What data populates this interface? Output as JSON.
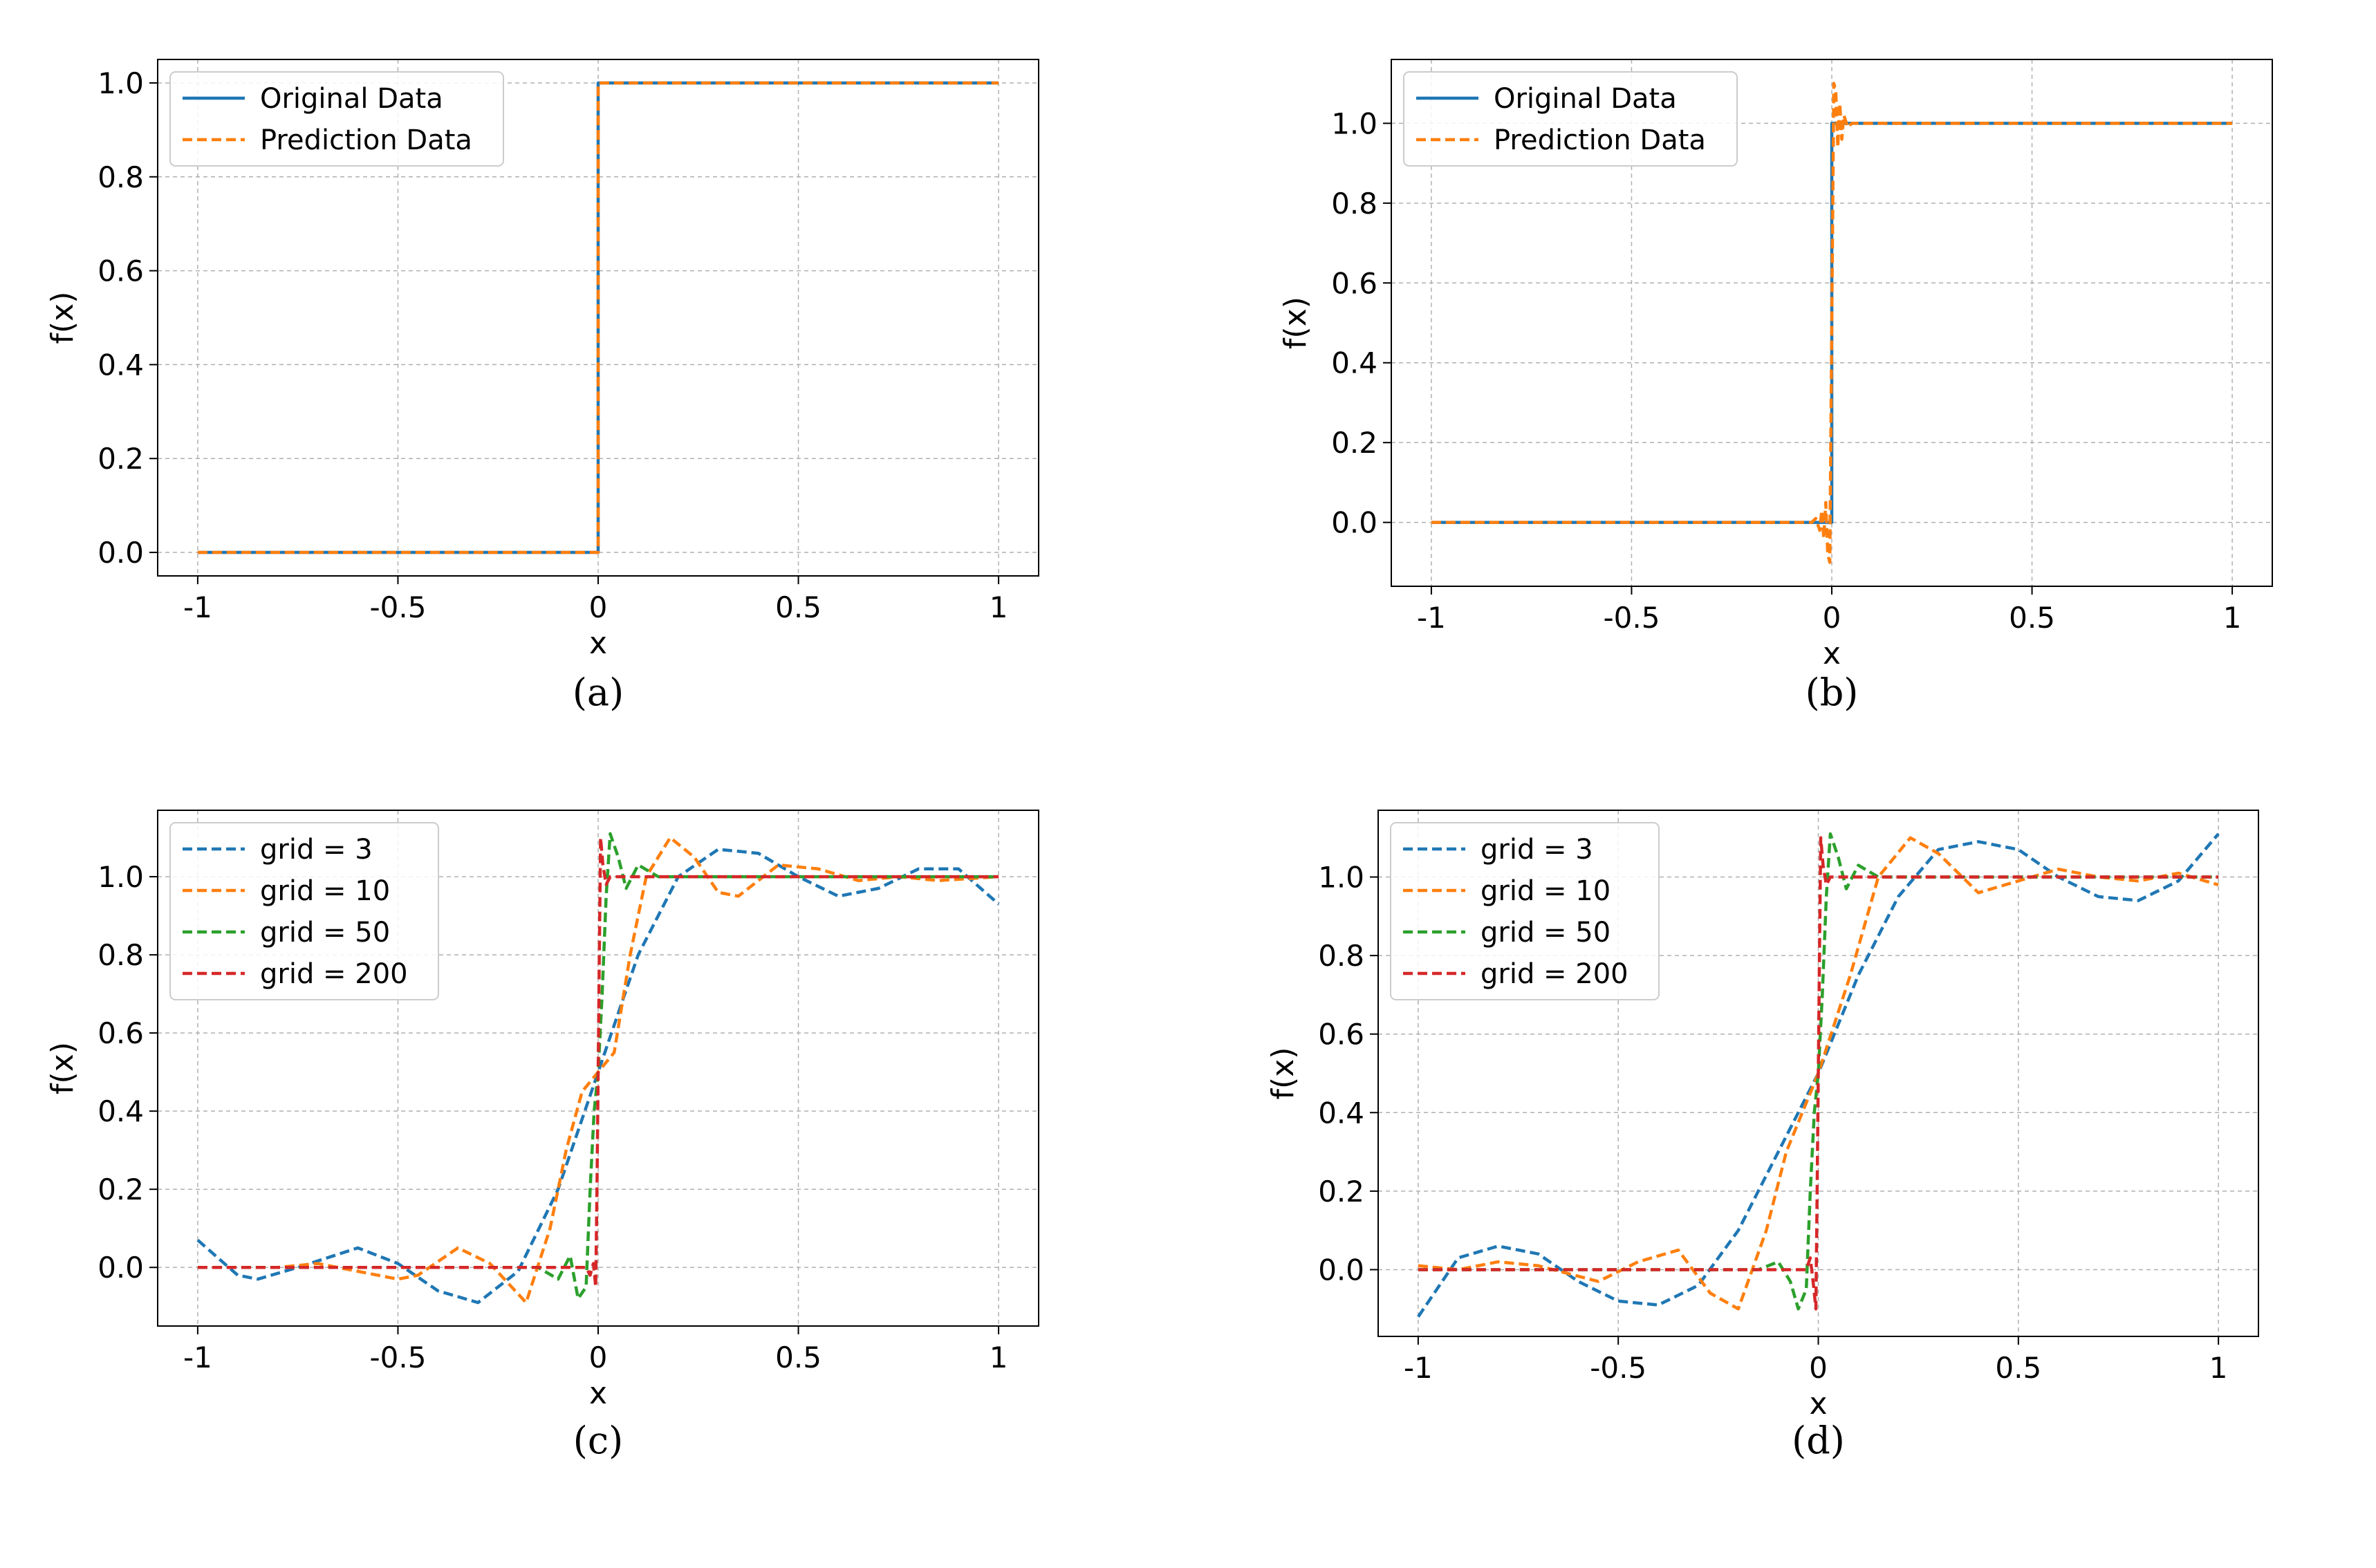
{
  "colors": {
    "original": "#1f77b4",
    "prediction": "#ff7f0e",
    "grid_3": "#1f77b4",
    "grid_10": "#ff7f0e",
    "grid_50": "#2ca02c",
    "grid_200": "#d62728"
  },
  "chart_data": [
    {
      "type": "line",
      "panel": "a",
      "caption": "(a)",
      "xlabel": "x",
      "ylabel": "f(x)",
      "xlim": [
        -1.1,
        1.1
      ],
      "ylim": [
        -0.05,
        1.05
      ],
      "xticks": [
        -1,
        -0.5,
        0,
        0.5,
        1
      ],
      "xtick_labels": [
        "-1",
        "-0.5",
        "0",
        "0.5",
        "1"
      ],
      "yticks": [
        0.0,
        0.2,
        0.4,
        0.6,
        0.8,
        1.0
      ],
      "ytick_labels": [
        "0.0",
        "0.2",
        "0.4",
        "0.6",
        "0.8",
        "1.0"
      ],
      "grid": true,
      "legend_position": "upper-left",
      "series": [
        {
          "name": "Original Data",
          "color_key": "original",
          "style": "solid",
          "x": [
            -1,
            0,
            0,
            1
          ],
          "y": [
            0,
            0,
            1,
            1
          ]
        },
        {
          "name": "Prediction Data",
          "color_key": "prediction",
          "style": "dashed",
          "x": [
            -1,
            0,
            0,
            1
          ],
          "y": [
            0,
            0,
            1,
            1
          ]
        }
      ]
    },
    {
      "type": "line",
      "panel": "b",
      "caption": "(b)",
      "xlabel": "x",
      "ylabel": "f(x)",
      "xlim": [
        -1.1,
        1.1
      ],
      "ylim": [
        -0.16,
        1.16
      ],
      "xticks": [
        -1,
        -0.5,
        0,
        0.5,
        1
      ],
      "xtick_labels": [
        "-1",
        "-0.5",
        "0",
        "0.5",
        "1"
      ],
      "yticks": [
        0.0,
        0.2,
        0.4,
        0.6,
        0.8,
        1.0
      ],
      "ytick_labels": [
        "0.0",
        "0.2",
        "0.4",
        "0.6",
        "0.8",
        "1.0"
      ],
      "grid": true,
      "legend_position": "upper-left",
      "series": [
        {
          "name": "Original Data",
          "color_key": "original",
          "style": "solid",
          "x": [
            -1,
            0,
            0,
            1
          ],
          "y": [
            0,
            0,
            1,
            1
          ]
        },
        {
          "name": "Prediction Data",
          "color_key": "prediction",
          "style": "dashed",
          "x": [
            -1,
            -0.05,
            -0.04,
            -0.03,
            -0.025,
            -0.02,
            -0.015,
            -0.01,
            -0.005,
            0,
            0.005,
            0.01,
            0.015,
            0.02,
            0.025,
            0.03,
            0.04,
            0.05,
            1
          ],
          "y": [
            0,
            0,
            0.01,
            -0.02,
            0.03,
            -0.04,
            0.05,
            -0.08,
            -0.1,
            0.5,
            1.1,
            1.08,
            0.94,
            1.05,
            0.96,
            1.02,
            0.99,
            1.0,
            1.0
          ]
        }
      ]
    },
    {
      "type": "line",
      "panel": "c",
      "caption": "(c)",
      "xlabel": "x",
      "ylabel": "f(x)",
      "xlim": [
        -1.1,
        1.1
      ],
      "ylim": [
        -0.15,
        1.17
      ],
      "xticks": [
        -1,
        -0.5,
        0,
        0.5,
        1
      ],
      "xtick_labels": [
        "-1",
        "-0.5",
        "0",
        "0.5",
        "1"
      ],
      "yticks": [
        0.0,
        0.2,
        0.4,
        0.6,
        0.8,
        1.0
      ],
      "ytick_labels": [
        "0.0",
        "0.2",
        "0.4",
        "0.6",
        "0.8",
        "1.0"
      ],
      "grid": true,
      "legend_position": "upper-left",
      "series": [
        {
          "name": "grid = 3",
          "color_key": "grid_3",
          "style": "dashed",
          "x": [
            -1,
            -0.9,
            -0.85,
            -0.75,
            -0.6,
            -0.5,
            -0.4,
            -0.3,
            -0.2,
            -0.1,
            0,
            0.1,
            0.2,
            0.3,
            0.4,
            0.5,
            0.6,
            0.7,
            0.8,
            0.9,
            1
          ],
          "y": [
            0.07,
            -0.02,
            -0.03,
            0.0,
            0.05,
            0.01,
            -0.06,
            -0.09,
            -0.01,
            0.2,
            0.5,
            0.8,
            1.0,
            1.07,
            1.06,
            1.0,
            0.95,
            0.97,
            1.02,
            1.02,
            0.93
          ]
        },
        {
          "name": "grid = 10",
          "color_key": "grid_10",
          "style": "dashed",
          "x": [
            -1,
            -0.8,
            -0.7,
            -0.5,
            -0.45,
            -0.35,
            -0.27,
            -0.18,
            -0.12,
            -0.08,
            -0.04,
            0,
            0.04,
            0.08,
            0.12,
            0.18,
            0.24,
            0.3,
            0.35,
            0.45,
            0.55,
            0.65,
            0.75,
            0.85,
            1
          ],
          "y": [
            0,
            0.0,
            0.01,
            -0.03,
            -0.02,
            0.05,
            0.01,
            -0.09,
            0.1,
            0.3,
            0.45,
            0.5,
            0.55,
            0.8,
            1.0,
            1.1,
            1.05,
            0.96,
            0.95,
            1.03,
            1.02,
            0.99,
            1.0,
            0.99,
            1.0
          ]
        },
        {
          "name": "grid = 50",
          "color_key": "grid_50",
          "style": "dashed",
          "x": [
            -1,
            -0.15,
            -0.1,
            -0.07,
            -0.05,
            -0.03,
            -0.02,
            -0.01,
            0,
            0.01,
            0.02,
            0.03,
            0.05,
            0.07,
            0.1,
            0.15,
            1
          ],
          "y": [
            0,
            0.0,
            -0.03,
            0.03,
            -0.08,
            -0.05,
            0.2,
            0.4,
            0.5,
            0.7,
            0.95,
            1.11,
            1.05,
            0.97,
            1.03,
            1.0,
            1.0
          ]
        },
        {
          "name": "grid = 200",
          "color_key": "grid_200",
          "style": "dashed",
          "x": [
            -1,
            -0.03,
            -0.02,
            -0.012,
            -0.006,
            -0.003,
            0,
            0.003,
            0.006,
            0.012,
            0.02,
            0.03,
            1
          ],
          "y": [
            0,
            0.0,
            -0.02,
            0.01,
            -0.05,
            0.2,
            0.5,
            0.8,
            1.1,
            1.03,
            0.98,
            1.0,
            1.0
          ]
        }
      ]
    },
    {
      "type": "line",
      "panel": "d",
      "caption": "(d)",
      "xlabel": "x",
      "ylabel": "f(x)",
      "xlim": [
        -1.1,
        1.1
      ],
      "ylim": [
        -0.17,
        1.17
      ],
      "xticks": [
        -1,
        -0.5,
        0,
        0.5,
        1
      ],
      "xtick_labels": [
        "-1",
        "-0.5",
        "0",
        "0.5",
        "1"
      ],
      "yticks": [
        0.0,
        0.2,
        0.4,
        0.6,
        0.8,
        1.0
      ],
      "ytick_labels": [
        "0.0",
        "0.2",
        "0.4",
        "0.6",
        "0.8",
        "1.0"
      ],
      "grid": true,
      "legend_position": "upper-left",
      "series": [
        {
          "name": "grid = 3",
          "color_key": "grid_3",
          "style": "dashed",
          "x": [
            -1,
            -0.9,
            -0.8,
            -0.7,
            -0.6,
            -0.5,
            -0.4,
            -0.3,
            -0.2,
            -0.1,
            0,
            0.1,
            0.2,
            0.3,
            0.4,
            0.5,
            0.6,
            0.7,
            0.8,
            0.9,
            1
          ],
          "y": [
            -0.12,
            0.03,
            0.06,
            0.04,
            -0.03,
            -0.08,
            -0.09,
            -0.04,
            0.1,
            0.3,
            0.5,
            0.75,
            0.95,
            1.07,
            1.09,
            1.07,
            1.0,
            0.95,
            0.94,
            0.99,
            1.11
          ]
        },
        {
          "name": "grid = 10",
          "color_key": "grid_10",
          "style": "dashed",
          "x": [
            -1,
            -0.9,
            -0.8,
            -0.7,
            -0.55,
            -0.45,
            -0.35,
            -0.27,
            -0.2,
            -0.13,
            -0.08,
            0,
            0.08,
            0.15,
            0.23,
            0.3,
            0.4,
            0.5,
            0.6,
            0.7,
            0.8,
            0.9,
            1
          ],
          "y": [
            0.01,
            0.0,
            0.02,
            0.01,
            -0.03,
            0.02,
            0.05,
            -0.06,
            -0.1,
            0.1,
            0.3,
            0.5,
            0.75,
            1.0,
            1.1,
            1.06,
            0.96,
            0.99,
            1.02,
            1.0,
            0.99,
            1.01,
            0.98
          ]
        },
        {
          "name": "grid = 50",
          "color_key": "grid_50",
          "style": "dashed",
          "x": [
            -1,
            -0.15,
            -0.1,
            -0.07,
            -0.05,
            -0.03,
            -0.02,
            -0.01,
            0,
            0.01,
            0.02,
            0.03,
            0.05,
            0.07,
            0.1,
            0.15,
            1
          ],
          "y": [
            0,
            0.0,
            0.02,
            -0.03,
            -0.1,
            -0.05,
            0.2,
            0.4,
            0.5,
            0.7,
            0.95,
            1.11,
            1.05,
            0.97,
            1.03,
            1.0,
            1.0
          ]
        },
        {
          "name": "grid = 200",
          "color_key": "grid_200",
          "style": "dashed",
          "x": [
            -1,
            -0.03,
            -0.02,
            -0.012,
            -0.006,
            -0.003,
            0,
            0.003,
            0.006,
            0.012,
            0.02,
            0.03,
            1
          ],
          "y": [
            0,
            0.0,
            0.03,
            -0.04,
            -0.1,
            0.2,
            0.5,
            0.8,
            1.1,
            1.03,
            0.98,
            1.0,
            1.0
          ]
        }
      ]
    }
  ]
}
